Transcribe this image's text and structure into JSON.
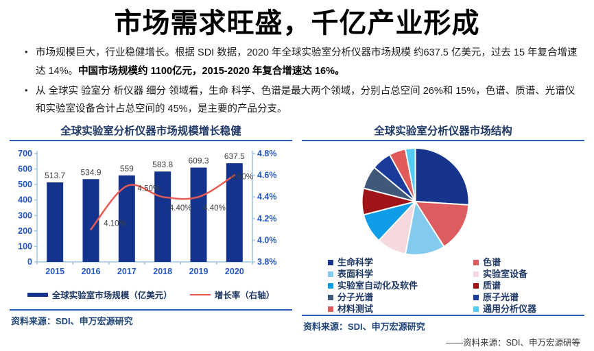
{
  "page": {
    "title": "市场需求旺盛，千亿产业形成",
    "bullets": [
      {
        "normal": "市场规模巨大，行业稳健增长。根据 SDI 数据，2020 年全球实验室分析仪器市场规模 约637.5 亿美元，过去 15 年复合增速达 14%。",
        "bold": "中国市场规模约 1100亿元，2015-2020 年复合增速达 16%。"
      },
      {
        "normal": "从 全球实 验室分 析仪器 细分 领域看，生命 科学、色谱是最大两个领域，分别占总空间 26%和 15%，色谱、质谱、光谱仪和实验室设备合计占总空间的 45%，是主要的产品分支。",
        "bold": ""
      }
    ]
  },
  "left_panel": {
    "title": "全球实验室分析仪器市场规模增长稳健",
    "source": "资料来源：SDI、申万宏源研究"
  },
  "right_panel": {
    "title": "全球实验室分析仪器市场结构",
    "source": "资料来源：SDI、申万宏源研究",
    "footnote": "——资料来源：SDI、申万宏源研等"
  },
  "colors": {
    "bar_navy": "#14338C",
    "line_red": "#EA5A52",
    "axis_label_blue": "#2456C5",
    "axis_line_blue": "#9DC3E6",
    "panel_title_navy": "#1F3864",
    "underline_blue": "#2E5BB8",
    "source_navy": "#1F4579",
    "data_label_gray": "#3F3F3F"
  },
  "chart_data": [
    {
      "type": "bar",
      "title": "全球实验室分析仪器市场规模增长稳健",
      "categories": [
        "2015",
        "2016",
        "2017",
        "2018",
        "2019",
        "2020"
      ],
      "series": [
        {
          "name": "全球实验室市场规模（亿美元）",
          "type": "bar",
          "axis": "left",
          "color": "#14338C",
          "values": [
            513.7,
            534.9,
            559,
            583.8,
            609.3,
            637.5
          ],
          "value_labels": [
            "513.7",
            "534.9",
            "559",
            "583.8",
            "609.3",
            "637.5"
          ]
        },
        {
          "name": "增长率（右轴）",
          "type": "line",
          "axis": "right",
          "color": "#EA5A52",
          "values": [
            null,
            4.1,
            4.5,
            4.4,
            4.4,
            4.6
          ],
          "value_labels": [
            "",
            "4.10%",
            "4.50%",
            "4.40%",
            "4.40%",
            "4.60%"
          ]
        }
      ],
      "left_axis": {
        "min": 0,
        "max": 700,
        "step": 100,
        "ticks": [
          "0",
          "100",
          "200",
          "300",
          "400",
          "500",
          "600",
          "700"
        ]
      },
      "right_axis": {
        "min": 3.8,
        "max": 4.8,
        "step": 0.2,
        "ticks": [
          "3.8%",
          "4.0%",
          "4.2%",
          "4.4%",
          "4.6%",
          "4.8%"
        ]
      },
      "legend_position": "bottom",
      "grid": false
    },
    {
      "type": "pie",
      "title": "全球实验室分析仪器市场结构",
      "values_estimated_from_angles": true,
      "stated_in_text": {
        "生命科学": 26,
        "色谱": 15,
        "色谱+质谱+光谱+实验室设备合计": 45
      },
      "slices": [
        {
          "label": "生命科学",
          "value": 26,
          "color": "#16348C"
        },
        {
          "label": "色谱",
          "value": 15,
          "color": "#DD5C5F"
        },
        {
          "label": "表面科学",
          "value": 12,
          "color": "#82CBEF"
        },
        {
          "label": "实验室设备",
          "value": 9,
          "color": "#F6D9DE"
        },
        {
          "label": "实验室自动化及软件",
          "value": 9,
          "color": "#0F9DE8"
        },
        {
          "label": "质谱",
          "value": 8,
          "color": "#A01318"
        },
        {
          "label": "分子光谱",
          "value": 7,
          "color": "#40587A"
        },
        {
          "label": "原子光谱",
          "value": 6,
          "color": "#1A3A9C"
        },
        {
          "label": "材料测试",
          "value": 5,
          "color": "#E05A5A"
        },
        {
          "label": "通用分析仪器",
          "value": 3,
          "color": "#55CBF2"
        }
      ],
      "legend_columns": [
        [
          "生命科学",
          "表面科学",
          "实验室自动化及软件",
          "分子光谱",
          "材料测试"
        ],
        [
          "色谱",
          "实验室设备",
          "质谱",
          "原子光谱",
          "通用分析仪器"
        ]
      ],
      "legend_position": "bottom"
    }
  ]
}
